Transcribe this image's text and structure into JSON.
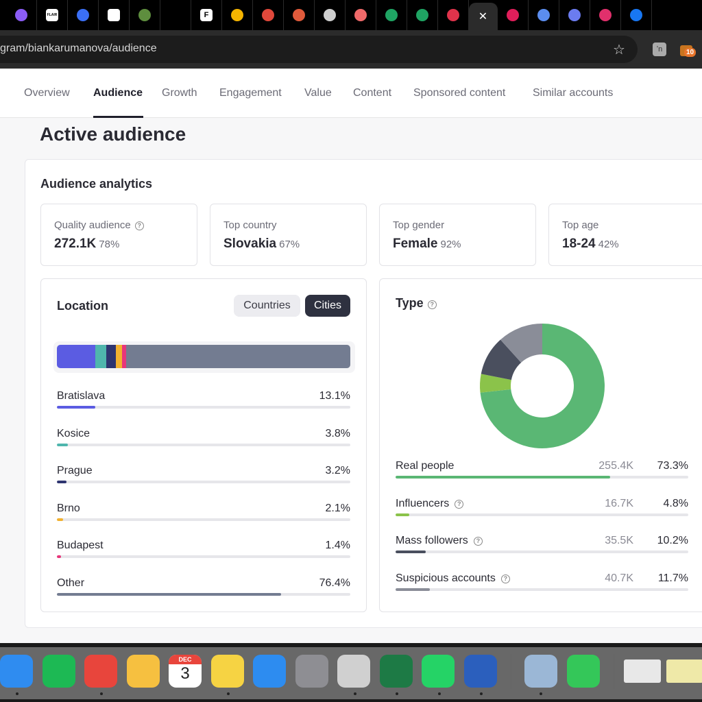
{
  "browser": {
    "tabs": [
      {
        "icon": "profile-circle-icon",
        "color": "#8b5cf6"
      },
      {
        "icon": "flair-icon",
        "color": "#ffffff",
        "text": "FLAIR"
      },
      {
        "icon": "g-arrow-icon",
        "color": "#3b6ff5"
      },
      {
        "icon": "openai-icon",
        "color": "#ffffff"
      },
      {
        "icon": "shopify-icon",
        "color": "#5e8e3e"
      },
      {
        "icon": "blank-tab-icon",
        "color": "#000000"
      },
      {
        "icon": "f-icon",
        "color": "#ffffff",
        "text": "F"
      },
      {
        "icon": "pen-icon",
        "color": "#f5b400"
      },
      {
        "icon": "shield-icon",
        "color": "#e0483b"
      },
      {
        "icon": "hat-icon",
        "color": "#e05a3b"
      },
      {
        "icon": "globe-icon",
        "color": "#cfcfcf"
      },
      {
        "icon": "asana-icon",
        "color": "#f06a6a"
      },
      {
        "icon": "drive-icon",
        "color": "#1fa463"
      },
      {
        "icon": "plus-sheet-icon",
        "color": "#1fa463"
      },
      {
        "icon": "heart-icon",
        "color": "#e0334b"
      },
      {
        "icon": "close-icon",
        "color": "#ffffff",
        "active": true
      },
      {
        "icon": "slack-icon",
        "color": "#e01e5a"
      },
      {
        "icon": "link-icon",
        "color": "#5b8def"
      },
      {
        "icon": "grid-icon",
        "color": "#6b7cf0"
      },
      {
        "icon": "instagram-icon",
        "color": "#e1306c"
      },
      {
        "icon": "facebook-icon",
        "color": "#1877f2"
      }
    ],
    "url": "gram/biankarumanova/audience",
    "extension_badge": "10"
  },
  "nav": {
    "items": [
      "Overview",
      "Audience",
      "Growth",
      "Engagement",
      "Value",
      "Content",
      "Sponsored content",
      "Similar accounts"
    ],
    "active": "Audience"
  },
  "page_title": "Active audience",
  "section_title": "Audience analytics",
  "stats": [
    {
      "label": "Quality audience",
      "value": "272.1K",
      "pct": "78%",
      "help": true
    },
    {
      "label": "Top country",
      "value": "Slovakia",
      "pct": "67%"
    },
    {
      "label": "Top gender",
      "value": "Female",
      "pct": "92%"
    },
    {
      "label": "Top age",
      "value": "18-24",
      "pct": "42%"
    }
  ],
  "location": {
    "title": "Location",
    "toggle": {
      "countries": "Countries",
      "cities": "Cities",
      "selected": "Cities"
    },
    "rows": [
      {
        "name": "Bratislava",
        "value": "13.1%",
        "share": 13.1,
        "color": "#5b5ce2"
      },
      {
        "name": "Kosice",
        "value": "3.8%",
        "share": 3.8,
        "color": "#4fb6ad"
      },
      {
        "name": "Prague",
        "value": "3.2%",
        "share": 3.2,
        "color": "#2e3570"
      },
      {
        "name": "Brno",
        "value": "2.1%",
        "share": 2.1,
        "color": "#f2b130"
      },
      {
        "name": "Budapest",
        "value": "1.4%",
        "share": 1.4,
        "color": "#e8367a"
      },
      {
        "name": "Other",
        "value": "76.4%",
        "share": 76.4,
        "color": "#737c91"
      }
    ]
  },
  "type": {
    "title": "Type",
    "rows": [
      {
        "name": "Real people",
        "count": "255.4K",
        "value": "73.3%",
        "share": 73.3,
        "color": "#5ab774",
        "help": false
      },
      {
        "name": "Influencers",
        "count": "16.7K",
        "value": "4.8%",
        "share": 4.8,
        "color": "#8bc34a",
        "help": true
      },
      {
        "name": "Mass followers",
        "count": "35.5K",
        "value": "10.2%",
        "share": 10.2,
        "color": "#4a4f5e",
        "help": true
      },
      {
        "name": "Suspicious accounts",
        "count": "40.7K",
        "value": "11.7%",
        "share": 11.7,
        "color": "#8a8d98",
        "help": true
      }
    ]
  },
  "dock": {
    "items": [
      {
        "icon": "safari-icon",
        "color": "#2f8cf0"
      },
      {
        "icon": "spotify-icon",
        "color": "#1db954"
      },
      {
        "icon": "chrome-icon",
        "color": "#e8453c"
      },
      {
        "icon": "photos-icon",
        "color": "#f6c040"
      },
      {
        "icon": "calendar-icon",
        "color": "#ffffff",
        "month": "DEC",
        "day": "3"
      },
      {
        "icon": "notes-icon",
        "color": "#f6d343"
      },
      {
        "icon": "keynote-icon",
        "color": "#2d8cf0"
      },
      {
        "icon": "settings-icon",
        "color": "#8e8e93"
      },
      {
        "icon": "calculator-icon",
        "color": "#d0d0d0"
      },
      {
        "icon": "excel-icon",
        "color": "#1d7a45"
      },
      {
        "icon": "whatsapp-icon",
        "color": "#25d366"
      },
      {
        "icon": "word-icon",
        "color": "#2b5fbd"
      },
      {
        "icon": "preview-icon",
        "color": "#9bb7d6"
      },
      {
        "icon": "facetime-icon",
        "color": "#34c759"
      },
      {
        "icon": "window-thumb-icon",
        "color": "#e8e8e8"
      },
      {
        "icon": "window-thumb-icon-2",
        "color": "#efe9a8"
      }
    ]
  }
}
